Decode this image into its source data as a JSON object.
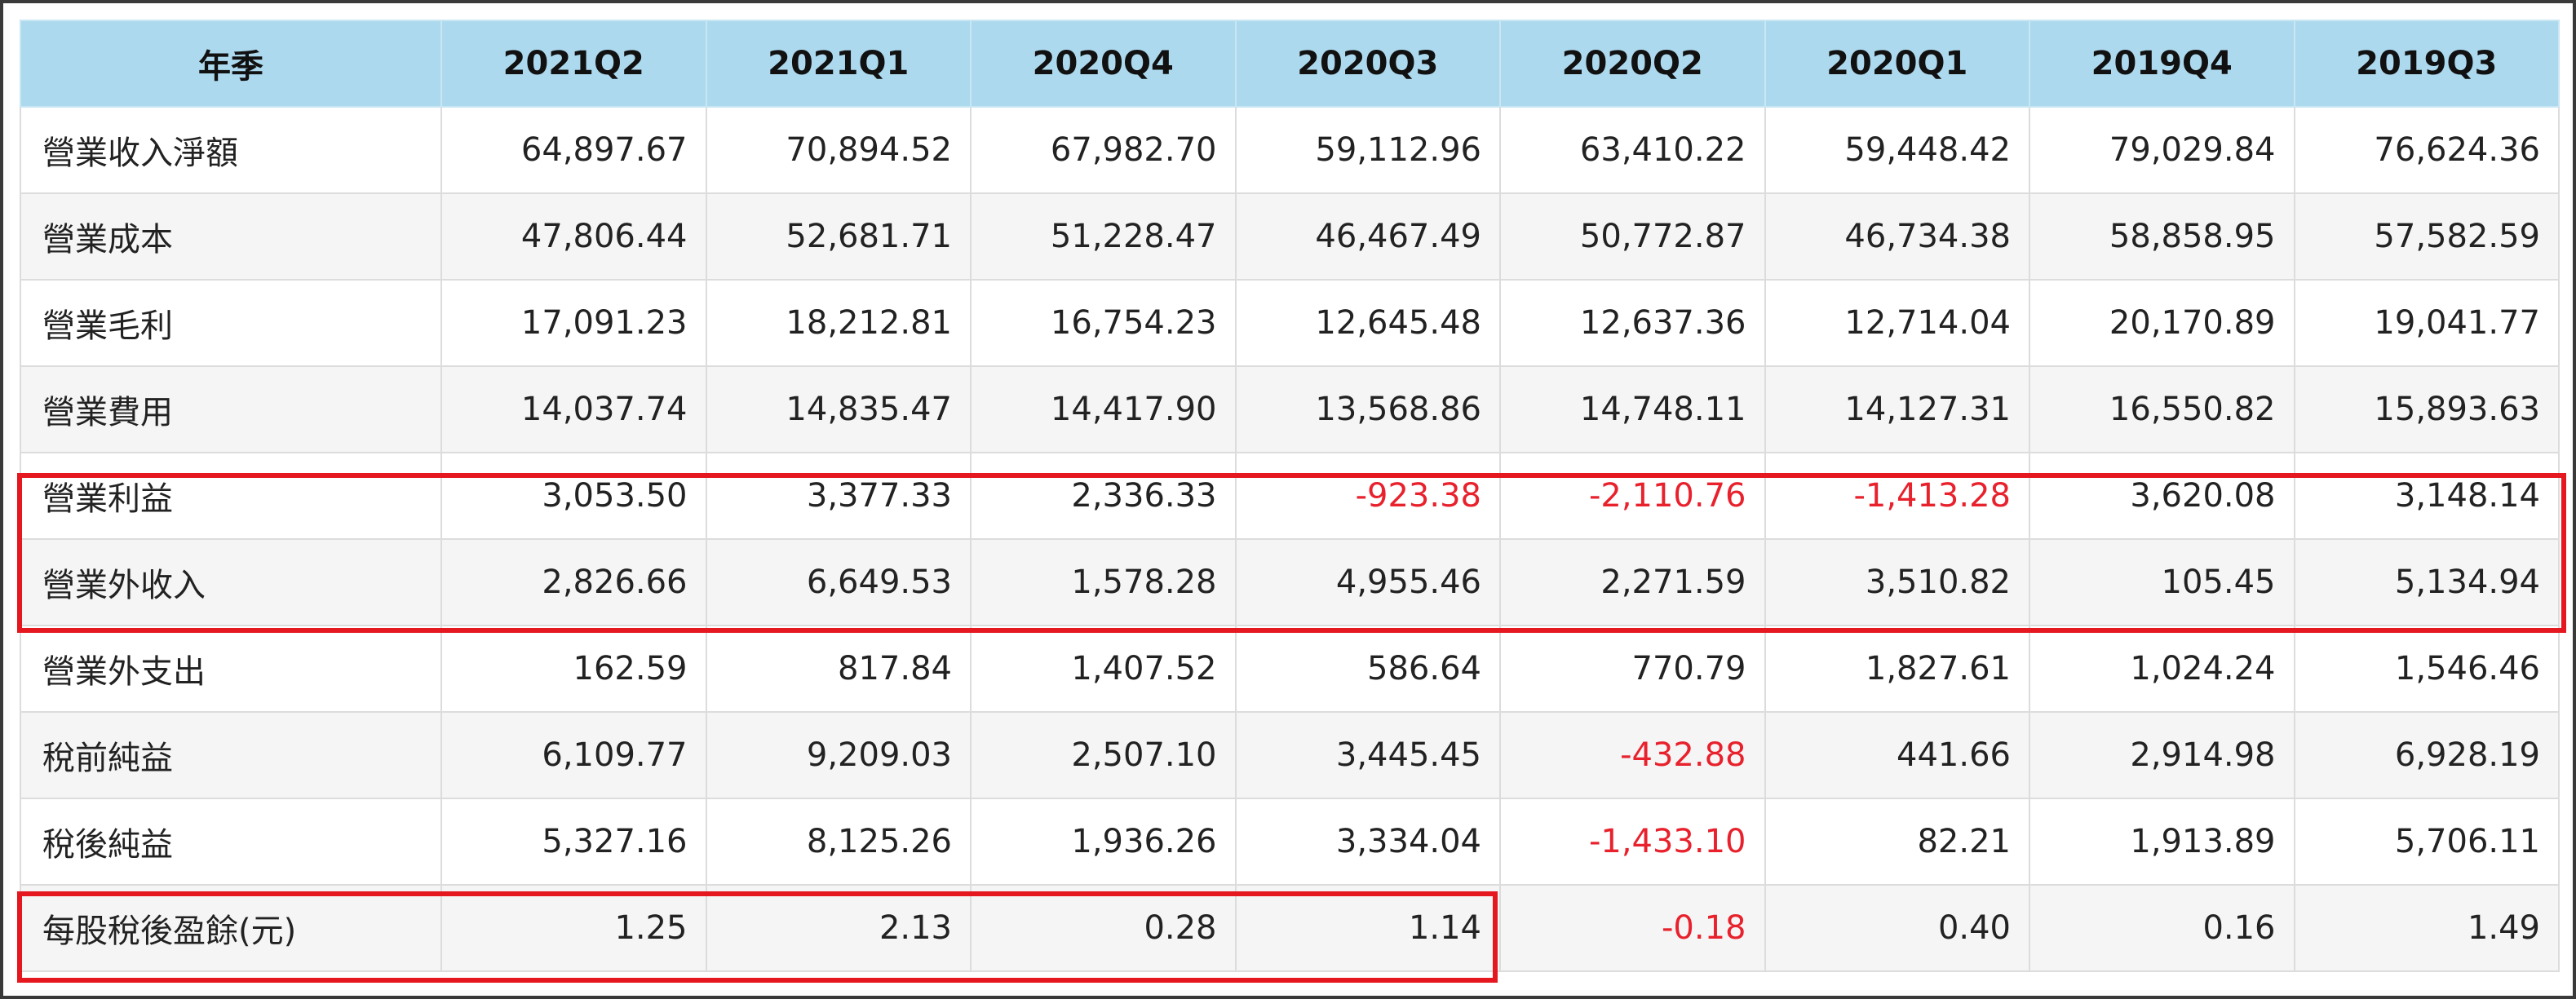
{
  "table": {
    "header": [
      "年季",
      "2021Q2",
      "2021Q1",
      "2020Q4",
      "2020Q3",
      "2020Q2",
      "2020Q1",
      "2019Q4",
      "2019Q3"
    ],
    "rows": [
      {
        "label": "營業收入淨額",
        "values": [
          "64,897.67",
          "70,894.52",
          "67,982.70",
          "59,112.96",
          "63,410.22",
          "59,448.42",
          "79,029.84",
          "76,624.36"
        ]
      },
      {
        "label": "營業成本",
        "values": [
          "47,806.44",
          "52,681.71",
          "51,228.47",
          "46,467.49",
          "50,772.87",
          "46,734.38",
          "58,858.95",
          "57,582.59"
        ]
      },
      {
        "label": "營業毛利",
        "values": [
          "17,091.23",
          "18,212.81",
          "16,754.23",
          "12,645.48",
          "12,637.36",
          "12,714.04",
          "20,170.89",
          "19,041.77"
        ]
      },
      {
        "label": "營業費用",
        "values": [
          "14,037.74",
          "14,835.47",
          "14,417.90",
          "13,568.86",
          "14,748.11",
          "14,127.31",
          "16,550.82",
          "15,893.63"
        ]
      },
      {
        "label": "營業利益",
        "values": [
          "3,053.50",
          "3,377.33",
          "2,336.33",
          "-923.38",
          "-2,110.76",
          "-1,413.28",
          "3,620.08",
          "3,148.14"
        ]
      },
      {
        "label": "營業外收入",
        "values": [
          "2,826.66",
          "6,649.53",
          "1,578.28",
          "4,955.46",
          "2,271.59",
          "3,510.82",
          "105.45",
          "5,134.94"
        ]
      },
      {
        "label": "營業外支出",
        "values": [
          "162.59",
          "817.84",
          "1,407.52",
          "586.64",
          "770.79",
          "1,827.61",
          "1,024.24",
          "1,546.46"
        ]
      },
      {
        "label": "稅前純益",
        "values": [
          "6,109.77",
          "9,209.03",
          "2,507.10",
          "3,445.45",
          "-432.88",
          "441.66",
          "2,914.98",
          "6,928.19"
        ]
      },
      {
        "label": "稅後純益",
        "values": [
          "5,327.16",
          "8,125.26",
          "1,936.26",
          "3,334.04",
          "-1,433.10",
          "82.21",
          "1,913.89",
          "5,706.11"
        ]
      },
      {
        "label": "每股稅後盈餘(元)",
        "values": [
          "1.25",
          "2.13",
          "0.28",
          "1.14",
          "-0.18",
          "0.40",
          "0.16",
          "1.49"
        ]
      }
    ]
  },
  "colors": {
    "header_bg": "#add9ee",
    "negative_text": "#e8212c",
    "highlight_border": "#e5171f",
    "alt_row_bg": "#f5f5f5"
  }
}
